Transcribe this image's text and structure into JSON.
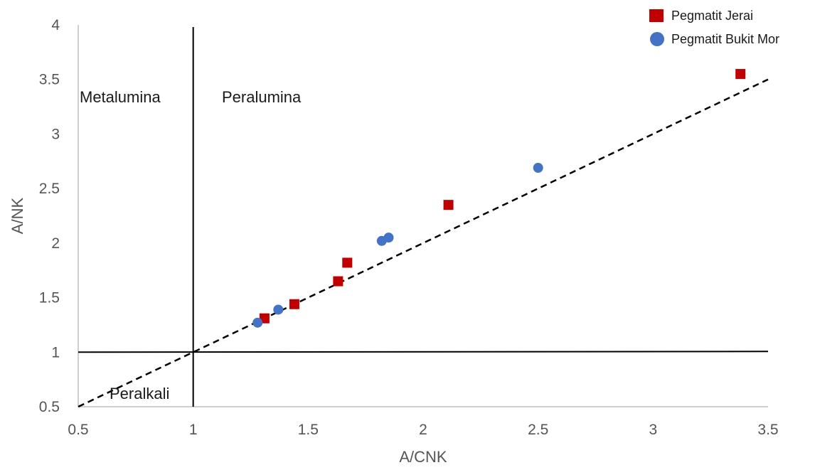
{
  "chart_data": {
    "type": "scatter",
    "xlabel": "A/CNK",
    "ylabel": "A/NK",
    "xlim": [
      0.5,
      3.5
    ],
    "ylim": [
      0.5,
      4
    ],
    "x_ticks": [
      "0.5",
      "1",
      "1.5",
      "2",
      "2.5",
      "3",
      "3.5"
    ],
    "y_ticks": [
      "0.5",
      "1",
      "1.5",
      "2",
      "2.5",
      "3",
      "3.5",
      "4"
    ],
    "grid": false,
    "legend_position": "top-right",
    "series": [
      {
        "name": "Pegmatit Jerai",
        "marker": "square",
        "color": "#C00000",
        "points": [
          {
            "x": 1.31,
            "y": 1.31
          },
          {
            "x": 1.44,
            "y": 1.44
          },
          {
            "x": 1.63,
            "y": 1.65
          },
          {
            "x": 1.67,
            "y": 1.82
          },
          {
            "x": 2.11,
            "y": 2.35
          },
          {
            "x": 3.38,
            "y": 3.55
          }
        ]
      },
      {
        "name": "Pegmatit Bukit Mor",
        "marker": "circle",
        "color": "#4472C4",
        "points": [
          {
            "x": 1.28,
            "y": 1.27
          },
          {
            "x": 1.37,
            "y": 1.39
          },
          {
            "x": 1.82,
            "y": 2.02
          },
          {
            "x": 1.85,
            "y": 2.05
          },
          {
            "x": 2.5,
            "y": 2.69
          }
        ]
      }
    ],
    "reference_lines": [
      {
        "kind": "vertical",
        "x": 1,
        "style": "solid",
        "color": "#000000"
      },
      {
        "kind": "horizontal",
        "y": 1,
        "style": "solid",
        "color": "#000000"
      },
      {
        "kind": "segment",
        "from": [
          0.5,
          0.5
        ],
        "to": [
          3.5,
          3.5
        ],
        "style": "dashed",
        "color": "#000000"
      }
    ],
    "annotations": [
      {
        "text": "Metalumina",
        "anchor": "upper-left region"
      },
      {
        "text": "Peralumina",
        "anchor": "upper-right region"
      },
      {
        "text": "Peralkali",
        "anchor": "lower-left region"
      }
    ]
  }
}
